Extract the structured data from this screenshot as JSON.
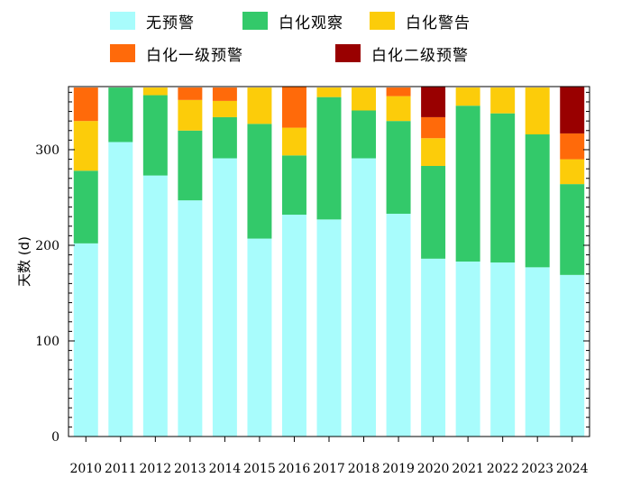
{
  "chart_data": {
    "type": "bar",
    "stacked": true,
    "title": "",
    "xlabel": "",
    "ylabel": "天数 (d)",
    "ylim": [
      0,
      366
    ],
    "yticks": [
      0,
      100,
      200,
      300
    ],
    "legend_position": "top",
    "categories": [
      "2010",
      "2011",
      "2012",
      "2013",
      "2014",
      "2015",
      "2016",
      "2017",
      "2018",
      "2019",
      "2020",
      "2021",
      "2022",
      "2023",
      "2024"
    ],
    "series": [
      {
        "name": "无预警",
        "color": "#a8fcfc",
        "values": [
          202,
          308,
          273,
          247,
          291,
          207,
          232,
          227,
          291,
          233,
          186,
          183,
          182,
          177,
          169
        ]
      },
      {
        "name": "白化观察",
        "color": "#33c96a",
        "values": [
          76,
          57,
          84,
          73,
          43,
          120,
          62,
          128,
          50,
          97,
          97,
          163,
          156,
          139,
          95
        ]
      },
      {
        "name": "白化警告",
        "color": "#fccc0a",
        "values": [
          52,
          0,
          8,
          32,
          17,
          38,
          29,
          10,
          24,
          26,
          29,
          19,
          27,
          49,
          26
        ]
      },
      {
        "name": "白化一级预警",
        "color": "#ff6a0a",
        "values": [
          35,
          0,
          0,
          13,
          14,
          0,
          43,
          0,
          0,
          9,
          22,
          0,
          0,
          0,
          27
        ]
      },
      {
        "name": "白化二级预警",
        "color": "#990000",
        "values": [
          0,
          0,
          0,
          0,
          0,
          0,
          0,
          0,
          0,
          0,
          32,
          0,
          0,
          0,
          49
        ]
      }
    ]
  }
}
